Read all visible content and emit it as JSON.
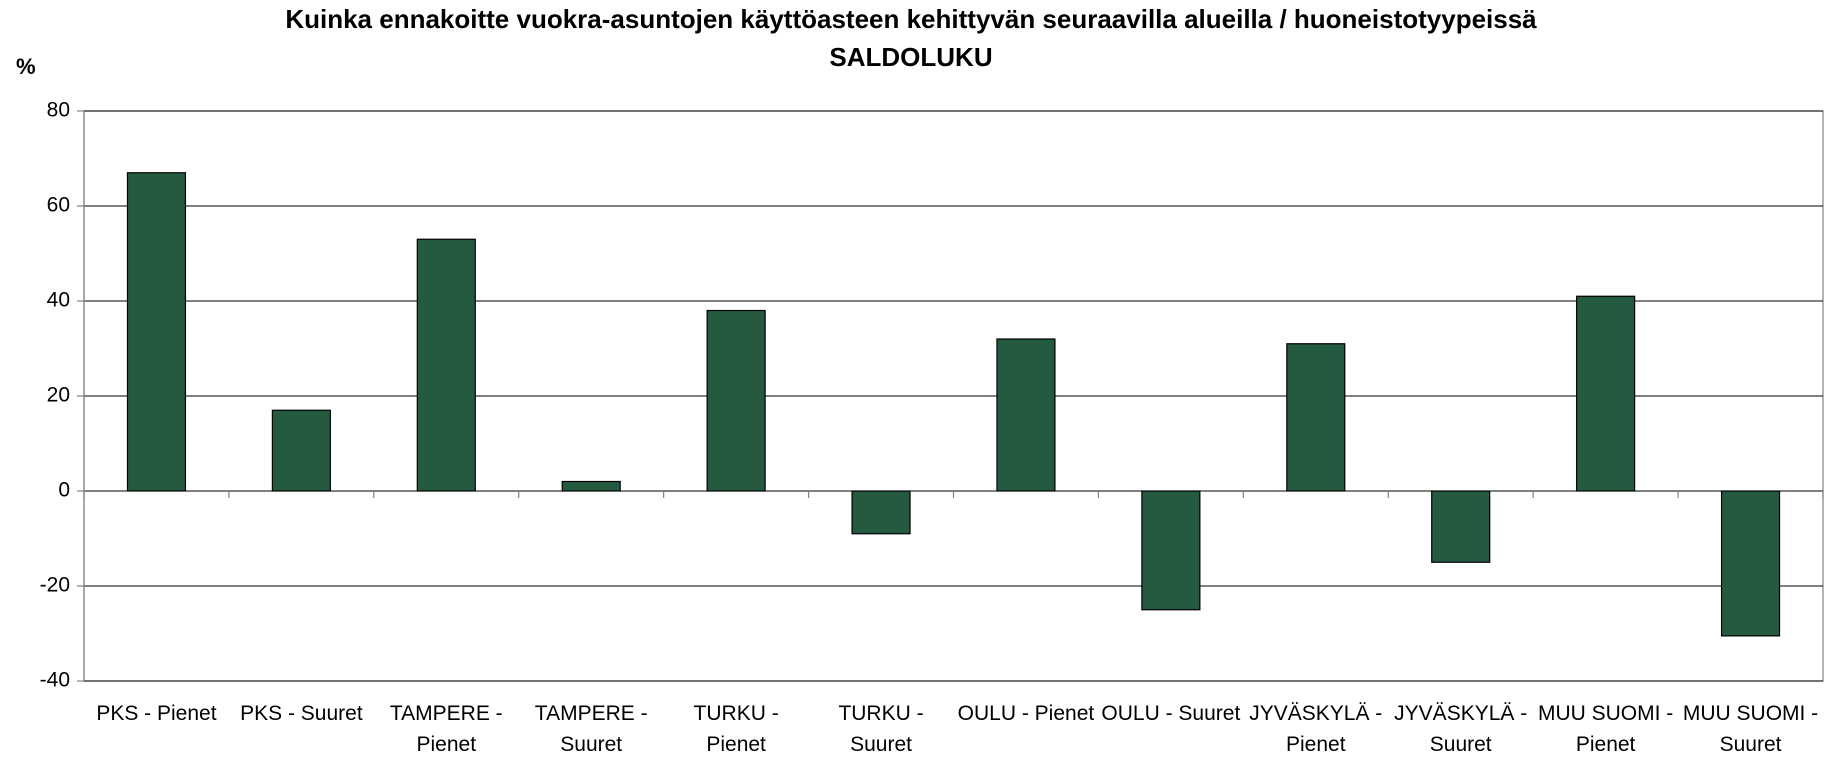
{
  "chart_data": {
    "type": "bar",
    "title": "Kuinka ennakoitte vuokra-asuntojen käyttöasteen kehittyvän seuraavilla alueilla / huoneistotyypeissä",
    "subtitle": "SALDOLUKU",
    "y_label": "%",
    "categories": [
      "PKS - Pienet",
      "PKS - Suuret",
      "TAMPERE - Pienet",
      "TAMPERE - Suuret",
      "TURKU - Pienet",
      "TURKU - Suuret",
      "OULU - Pienet",
      "OULU - Suuret",
      "JYVÄSKYLÄ - Pienet",
      "JYVÄSKYLÄ - Suuret",
      "MUU SUOMI - Pienet",
      "MUU SUOMI - Suuret"
    ],
    "values": [
      67,
      17,
      53,
      2,
      38,
      -9,
      32,
      -25,
      31,
      -15,
      41,
      -30.5
    ],
    "color": "#245b40",
    "ylim": [
      -40,
      80
    ],
    "yticks": [
      -40,
      -20,
      0,
      20,
      40,
      60,
      80
    ],
    "grid": true
  }
}
